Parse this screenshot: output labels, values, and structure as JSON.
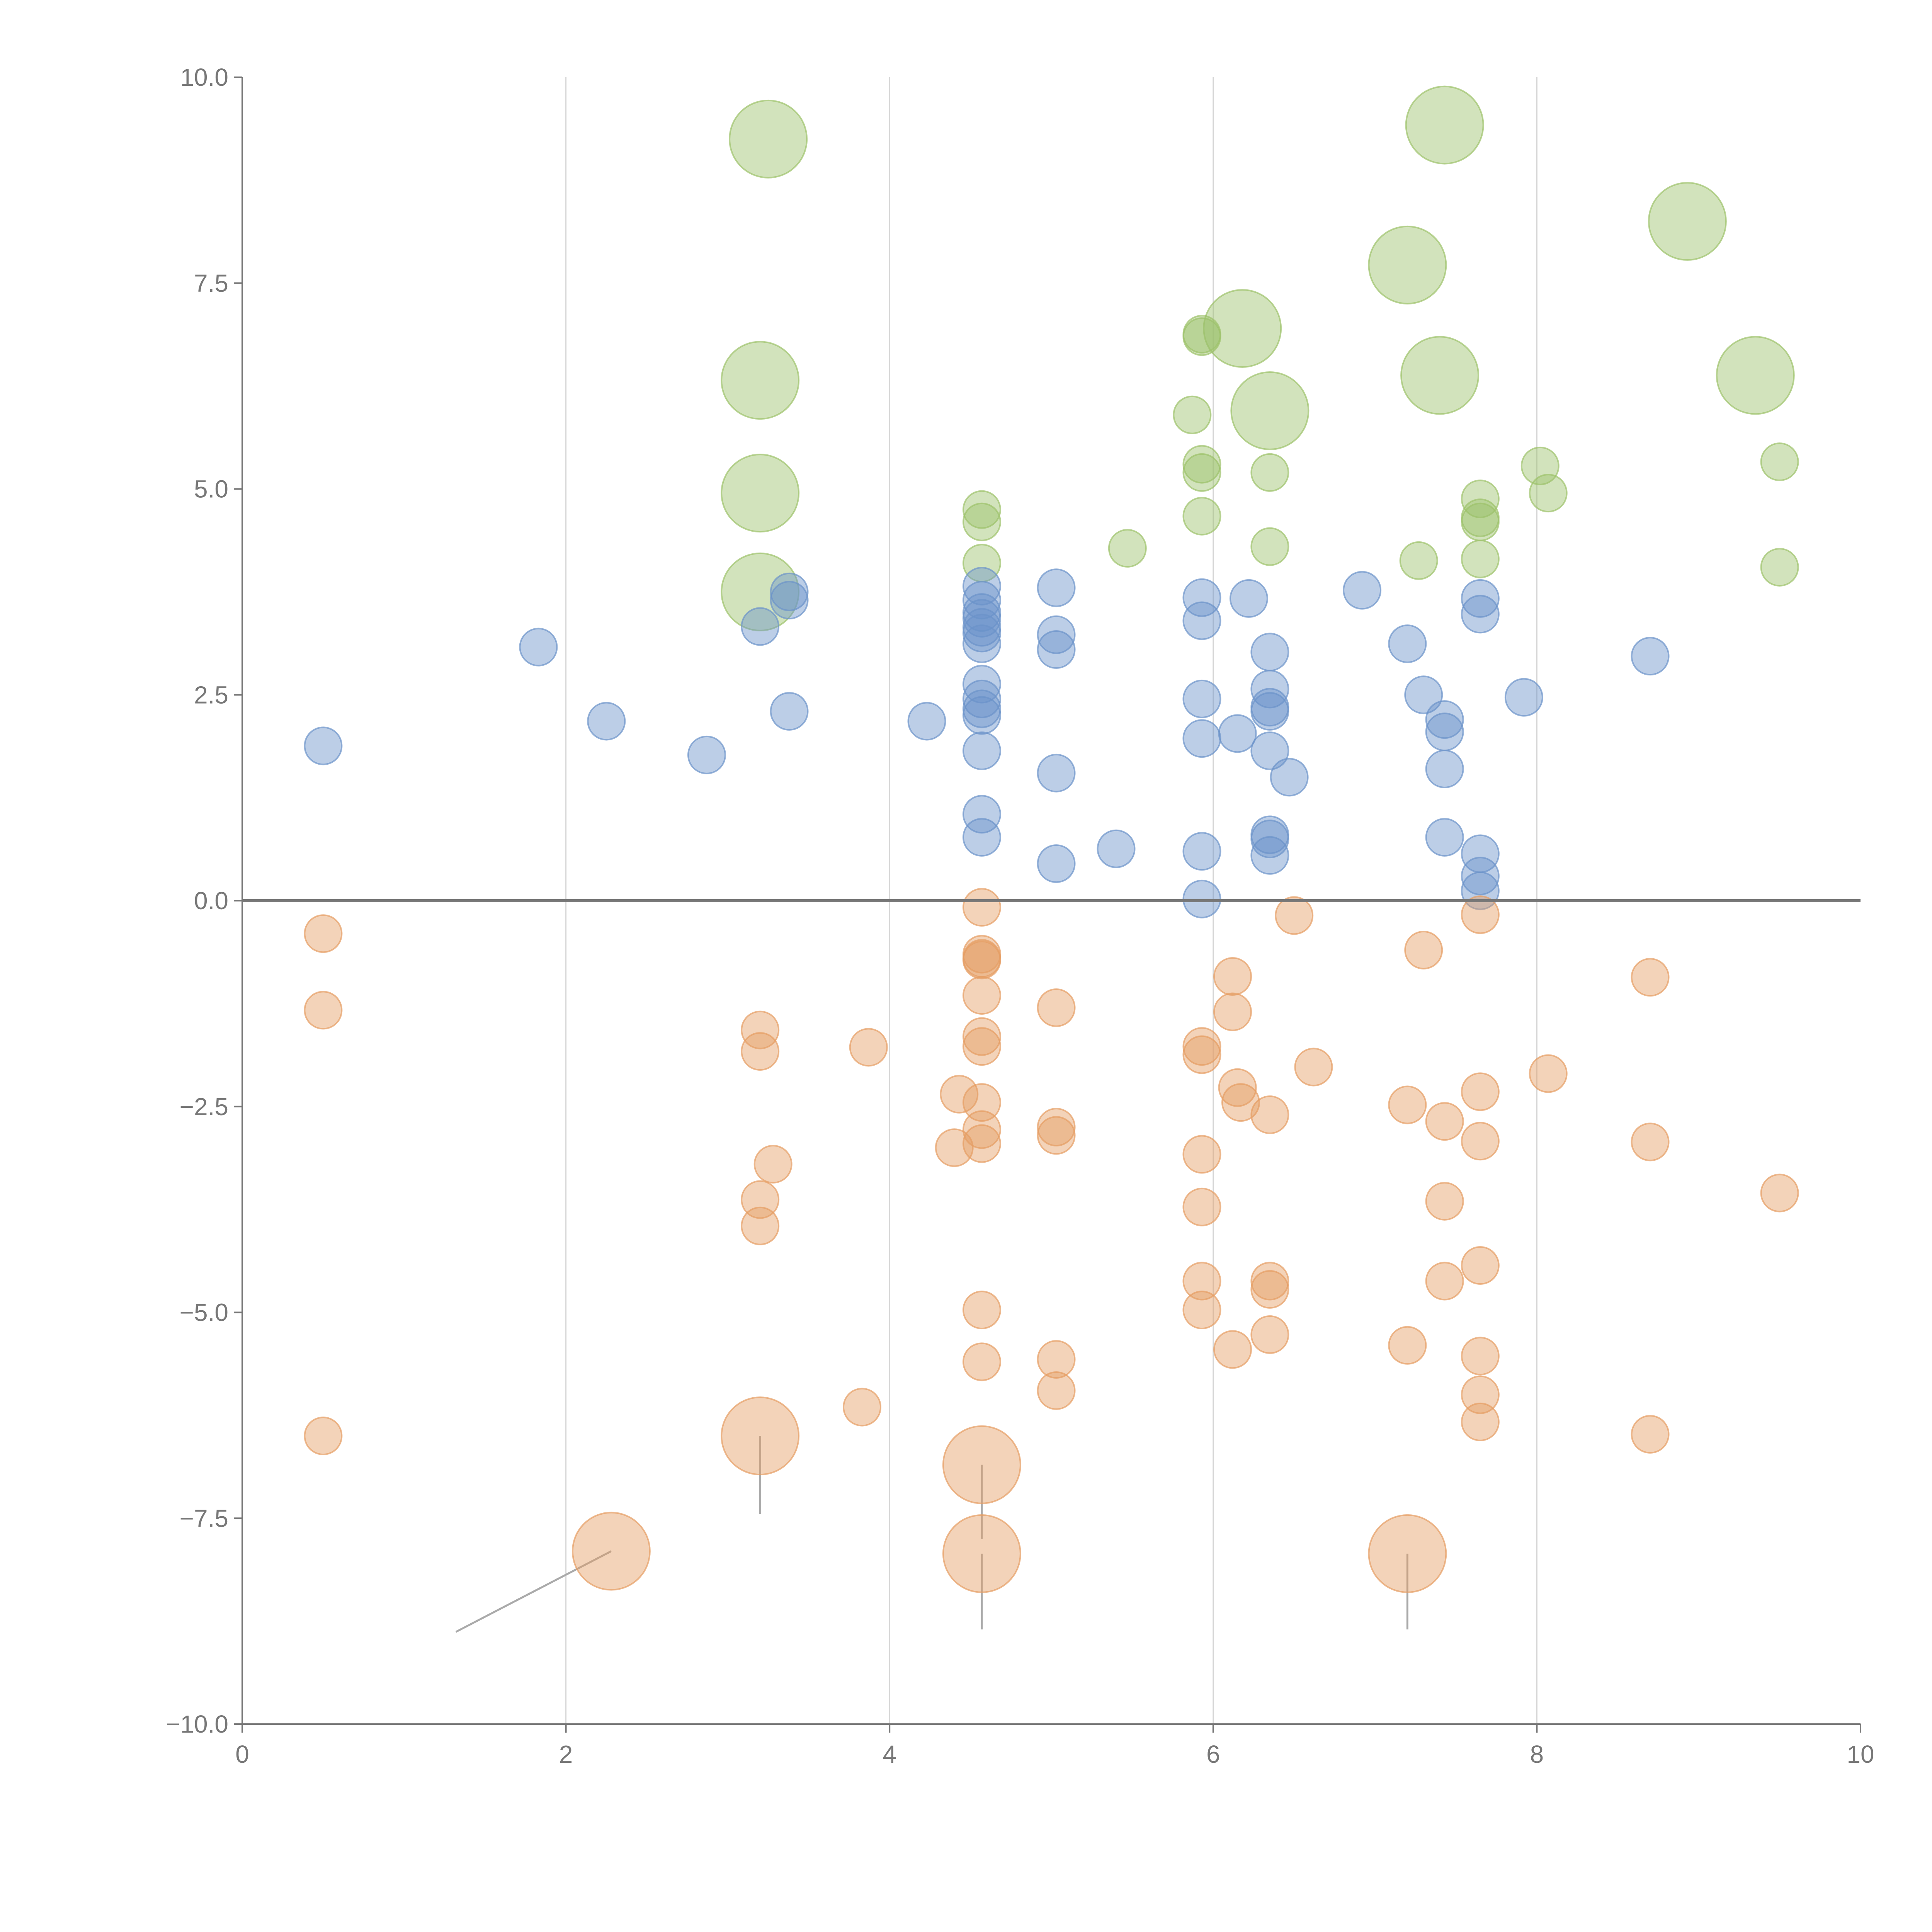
{
  "chart_data": {
    "type": "scatter",
    "title": "",
    "xlabel": "",
    "ylabel": "",
    "xlim": [
      0,
      10
    ],
    "ylim": [
      -10,
      10
    ],
    "grid": "vertical",
    "x_ticks": [
      0,
      2,
      4,
      6,
      8,
      10
    ],
    "x_tick_labels": [
      "0",
      "2",
      "4",
      "6",
      "8",
      "10"
    ],
    "y_ticks": [
      -10,
      -7.5,
      -5,
      -2.5,
      0,
      2.5,
      5,
      7.5,
      10
    ],
    "y_tick_labels": [
      "−10.0",
      "−7.5",
      "−5.0",
      "−2.5",
      "0.0",
      "2.5",
      "5.0",
      "7.5",
      "10.0"
    ],
    "colors": {
      "green": "#9cc26a",
      "blue": "#6b93c9",
      "orange": "#e59d63",
      "axis": "#777777",
      "grid": "#d6d6d6"
    },
    "series": [
      {
        "name": "green",
        "color": "#9cc26a",
        "points": [
          [
            3.25,
            9.25,
            2
          ],
          [
            7.43,
            9.42,
            2
          ],
          [
            8.93,
            8.25,
            2
          ],
          [
            7.2,
            7.72,
            2
          ],
          [
            6.18,
            6.95,
            2
          ],
          [
            3.2,
            6.32,
            2
          ],
          [
            7.4,
            6.38,
            2
          ],
          [
            9.35,
            6.38,
            2
          ],
          [
            6.35,
            5.95,
            2
          ],
          [
            3.2,
            4.95,
            2
          ],
          [
            3.2,
            3.75,
            2
          ],
          [
            5.93,
            6.85,
            1
          ],
          [
            5.93,
            6.88,
            1
          ],
          [
            5.87,
            5.9,
            1
          ],
          [
            5.93,
            5.3,
            1
          ],
          [
            5.93,
            5.2,
            1
          ],
          [
            6.35,
            5.2,
            1
          ],
          [
            4.57,
            4.75,
            1
          ],
          [
            4.57,
            4.6,
            1
          ],
          [
            5.93,
            4.67,
            1
          ],
          [
            4.57,
            4.1,
            1
          ],
          [
            5.47,
            4.28,
            1
          ],
          [
            6.35,
            4.3,
            1
          ],
          [
            7.27,
            4.13,
            1
          ],
          [
            7.65,
            4.88,
            1
          ],
          [
            7.65,
            4.65,
            1
          ],
          [
            7.65,
            4.6,
            1
          ],
          [
            7.65,
            4.15,
            1
          ],
          [
            8.02,
            5.28,
            1
          ],
          [
            8.07,
            4.95,
            1
          ],
          [
            9.5,
            5.33,
            1
          ],
          [
            9.5,
            4.05,
            1
          ]
        ]
      },
      {
        "name": "blue",
        "color": "#6b93c9",
        "points": [
          [
            0.5,
            1.88,
            1
          ],
          [
            1.83,
            3.08,
            1
          ],
          [
            2.25,
            2.18,
            1
          ],
          [
            2.87,
            1.77,
            1
          ],
          [
            3.2,
            3.33,
            1
          ],
          [
            3.38,
            3.75,
            1
          ],
          [
            3.38,
            3.65,
            1
          ],
          [
            3.38,
            2.3,
            1
          ],
          [
            4.23,
            2.18,
            1
          ],
          [
            4.57,
            3.82,
            1
          ],
          [
            4.57,
            3.65,
            1
          ],
          [
            4.57,
            3.5,
            1
          ],
          [
            4.57,
            3.43,
            1
          ],
          [
            4.57,
            3.32,
            1
          ],
          [
            4.57,
            3.25,
            1
          ],
          [
            4.57,
            3.12,
            1
          ],
          [
            4.57,
            2.63,
            1
          ],
          [
            4.57,
            2.45,
            1
          ],
          [
            4.57,
            2.33,
            1
          ],
          [
            4.57,
            2.25,
            1
          ],
          [
            4.57,
            1.82,
            1
          ],
          [
            4.57,
            1.05,
            1
          ],
          [
            4.57,
            0.77,
            1
          ],
          [
            5.03,
            3.8,
            1
          ],
          [
            5.03,
            3.23,
            1
          ],
          [
            5.03,
            3.05,
            1
          ],
          [
            5.03,
            1.55,
            1
          ],
          [
            5.03,
            0.45,
            1
          ],
          [
            5.4,
            0.63,
            1
          ],
          [
            5.93,
            3.68,
            1
          ],
          [
            5.93,
            3.4,
            1
          ],
          [
            5.93,
            2.45,
            1
          ],
          [
            5.93,
            1.97,
            1
          ],
          [
            5.93,
            0.6,
            1
          ],
          [
            5.93,
            0.02,
            1
          ],
          [
            6.15,
            2.03,
            1
          ],
          [
            6.22,
            3.67,
            1
          ],
          [
            6.35,
            3.02,
            1
          ],
          [
            6.35,
            2.57,
            1
          ],
          [
            6.35,
            2.35,
            1
          ],
          [
            6.35,
            2.3,
            1
          ],
          [
            6.35,
            1.82,
            1
          ],
          [
            6.35,
            0.8,
            1
          ],
          [
            6.35,
            0.75,
            1
          ],
          [
            6.35,
            0.55,
            1
          ],
          [
            6.47,
            1.5,
            1
          ],
          [
            6.92,
            3.77,
            1
          ],
          [
            7.2,
            3.12,
            1
          ],
          [
            7.3,
            2.5,
            1
          ],
          [
            7.43,
            2.2,
            1
          ],
          [
            7.43,
            2.05,
            1
          ],
          [
            7.43,
            1.6,
            1
          ],
          [
            7.43,
            0.77,
            1
          ],
          [
            7.65,
            3.67,
            1
          ],
          [
            7.65,
            3.48,
            1
          ],
          [
            7.65,
            0.57,
            1
          ],
          [
            7.65,
            0.3,
            1
          ],
          [
            7.65,
            0.12,
            1
          ],
          [
            7.92,
            2.47,
            1
          ],
          [
            8.7,
            2.97,
            1
          ]
        ]
      },
      {
        "name": "orange",
        "color": "#e59d63",
        "points": [
          [
            0.5,
            -0.4,
            1
          ],
          [
            0.5,
            -1.33,
            1
          ],
          [
            0.5,
            -6.5,
            1
          ],
          [
            2.28,
            -7.9,
            2
          ],
          [
            3.2,
            -1.57,
            1
          ],
          [
            3.2,
            -1.83,
            1
          ],
          [
            3.28,
            -3.2,
            1
          ],
          [
            3.2,
            -3.63,
            1
          ],
          [
            3.2,
            -3.95,
            1
          ],
          [
            3.2,
            -6.5,
            2
          ],
          [
            3.83,
            -6.15,
            1
          ],
          [
            3.87,
            -1.78,
            1
          ],
          [
            4.4,
            -3.0,
            1
          ],
          [
            4.43,
            -2.35,
            1
          ],
          [
            4.57,
            -0.08,
            1
          ],
          [
            4.57,
            -0.65,
            1
          ],
          [
            4.57,
            -0.7,
            1
          ],
          [
            4.57,
            -0.72,
            1
          ],
          [
            4.57,
            -1.15,
            1
          ],
          [
            4.57,
            -1.65,
            1
          ],
          [
            4.57,
            -1.77,
            1
          ],
          [
            4.57,
            -2.45,
            1
          ],
          [
            4.57,
            -2.78,
            1
          ],
          [
            4.57,
            -2.95,
            1
          ],
          [
            4.57,
            -4.97,
            1
          ],
          [
            4.57,
            -5.6,
            1
          ],
          [
            4.57,
            -6.85,
            2
          ],
          [
            4.57,
            -7.93,
            2
          ],
          [
            5.03,
            -1.3,
            1
          ],
          [
            5.03,
            -2.75,
            1
          ],
          [
            5.03,
            -2.85,
            1
          ],
          [
            5.03,
            -5.57,
            1
          ],
          [
            5.03,
            -5.95,
            1
          ],
          [
            5.93,
            -1.77,
            1
          ],
          [
            5.93,
            -1.87,
            1
          ],
          [
            5.93,
            -3.08,
            1
          ],
          [
            5.93,
            -3.72,
            1
          ],
          [
            5.93,
            -4.62,
            1
          ],
          [
            5.93,
            -4.97,
            1
          ],
          [
            6.12,
            -0.92,
            1
          ],
          [
            6.12,
            -1.35,
            1
          ],
          [
            6.15,
            -2.27,
            1
          ],
          [
            6.17,
            -2.45,
            1
          ],
          [
            6.12,
            -5.45,
            1
          ],
          [
            6.35,
            -2.6,
            1
          ],
          [
            6.35,
            -4.62,
            1
          ],
          [
            6.35,
            -4.72,
            1
          ],
          [
            6.35,
            -5.27,
            1
          ],
          [
            6.5,
            -0.18,
            1
          ],
          [
            6.62,
            -2.02,
            1
          ],
          [
            7.2,
            -2.48,
            1
          ],
          [
            7.2,
            -5.4,
            1
          ],
          [
            7.2,
            -7.93,
            2
          ],
          [
            7.3,
            -0.6,
            1
          ],
          [
            7.43,
            -2.68,
            1
          ],
          [
            7.43,
            -3.65,
            1
          ],
          [
            7.43,
            -4.62,
            1
          ],
          [
            7.65,
            -0.17,
            1
          ],
          [
            7.65,
            -2.32,
            1
          ],
          [
            7.65,
            -2.92,
            1
          ],
          [
            7.65,
            -4.43,
            1
          ],
          [
            7.65,
            -5.53,
            1
          ],
          [
            7.65,
            -6.0,
            1
          ],
          [
            7.65,
            -6.33,
            1
          ],
          [
            8.07,
            -2.1,
            1
          ],
          [
            8.7,
            -0.93,
            1
          ],
          [
            8.7,
            -2.93,
            1
          ],
          [
            8.7,
            -6.48,
            1
          ],
          [
            9.5,
            -3.55,
            1
          ]
        ]
      }
    ],
    "leaders": [
      {
        "from": [
          2.28,
          -7.9
        ],
        "to": [
          1.32,
          -8.88
        ],
        "color": "#aaaaaa"
      },
      {
        "from": [
          3.2,
          -6.5
        ],
        "to": [
          3.2,
          -7.45
        ],
        "color": "#aaaaaa"
      },
      {
        "from": [
          4.57,
          -6.85
        ],
        "to": [
          4.57,
          -7.75
        ],
        "color": "#aaaaaa"
      },
      {
        "from": [
          4.57,
          -7.93
        ],
        "to": [
          4.57,
          -8.85
        ],
        "color": "#aaaaaa"
      },
      {
        "from": [
          7.2,
          -7.93
        ],
        "to": [
          7.2,
          -8.85
        ],
        "color": "#aaaaaa"
      },
      {
        "from": [
          3.25,
          9.25
        ],
        "to": [
          3.42,
          9.35
        ],
        "color": "#ffffff"
      },
      {
        "from": [
          7.43,
          9.42
        ],
        "to": [
          7.6,
          9.45
        ],
        "color": "#ffffff"
      },
      {
        "from": [
          8.93,
          8.25
        ],
        "to": [
          9.03,
          8.45
        ],
        "color": "#ffffff"
      },
      {
        "from": [
          7.2,
          7.72
        ],
        "to": [
          7.07,
          7.88
        ],
        "color": "#ffffff"
      },
      {
        "from": [
          6.18,
          6.95
        ],
        "to": [
          6.05,
          6.95
        ],
        "color": "#ffffff"
      },
      {
        "from": [
          3.2,
          6.32
        ],
        "to": [
          3.32,
          6.48
        ],
        "color": "#ffffff"
      },
      {
        "from": [
          7.4,
          6.38
        ],
        "to": [
          7.55,
          6.22
        ],
        "color": "#ffffff"
      },
      {
        "from": [
          9.35,
          6.38
        ],
        "to": [
          9.28,
          6.55
        ],
        "color": "#ffffff"
      },
      {
        "from": [
          6.35,
          5.95
        ],
        "to": [
          6.5,
          5.8
        ],
        "color": "#ffffff"
      },
      {
        "from": [
          3.2,
          4.95
        ],
        "to": [
          3.38,
          4.9
        ],
        "color": "#ffffff"
      },
      {
        "from": [
          3.2,
          3.75
        ],
        "to": [
          3.28,
          3.6
        ],
        "color": "#ffffff"
      },
      {
        "from": [
          8.02,
          5.28
        ],
        "to": [
          8.12,
          5.1
        ],
        "color": "#ffffff"
      }
    ]
  }
}
